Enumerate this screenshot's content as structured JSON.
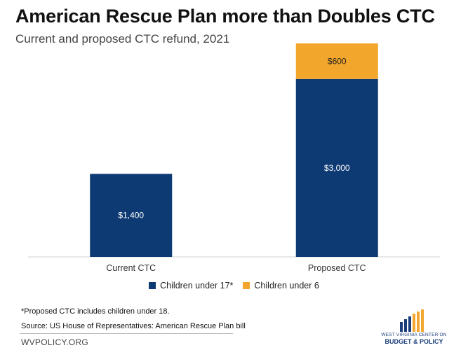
{
  "colors": {
    "under17": "#0e3a73",
    "under6": "#f2a62b",
    "axis": "#d0d0d0"
  },
  "chart_data": {
    "type": "bar",
    "stacked": true,
    "title": "American Rescue Plan more than Doubles CTC",
    "subtitle": "Current and proposed CTC refund, 2021",
    "categories": [
      "Current CTC",
      "Proposed CTC"
    ],
    "series": [
      {
        "name": "Children under 17*",
        "values": [
          1400,
          3000
        ],
        "labels": [
          "$1,400",
          "$3,000"
        ]
      },
      {
        "name": "Children under 6",
        "values": [
          0,
          600
        ],
        "labels": [
          "",
          "$600"
        ]
      }
    ],
    "xlabel": "",
    "ylabel": "",
    "ylim": [
      0,
      3600
    ],
    "grid": false,
    "legend_position": "bottom"
  },
  "footer": {
    "note": "*Proposed CTC includes children under 18.",
    "source": "Source: US House of Representatives: American Rescue Plan bill",
    "site": "WVPOLICY.ORG"
  },
  "logo": {
    "line1": "WEST VIRGINIA CENTER ON",
    "line2": "BUDGET & POLICY",
    "icon": "bar-chart-logo-icon"
  }
}
